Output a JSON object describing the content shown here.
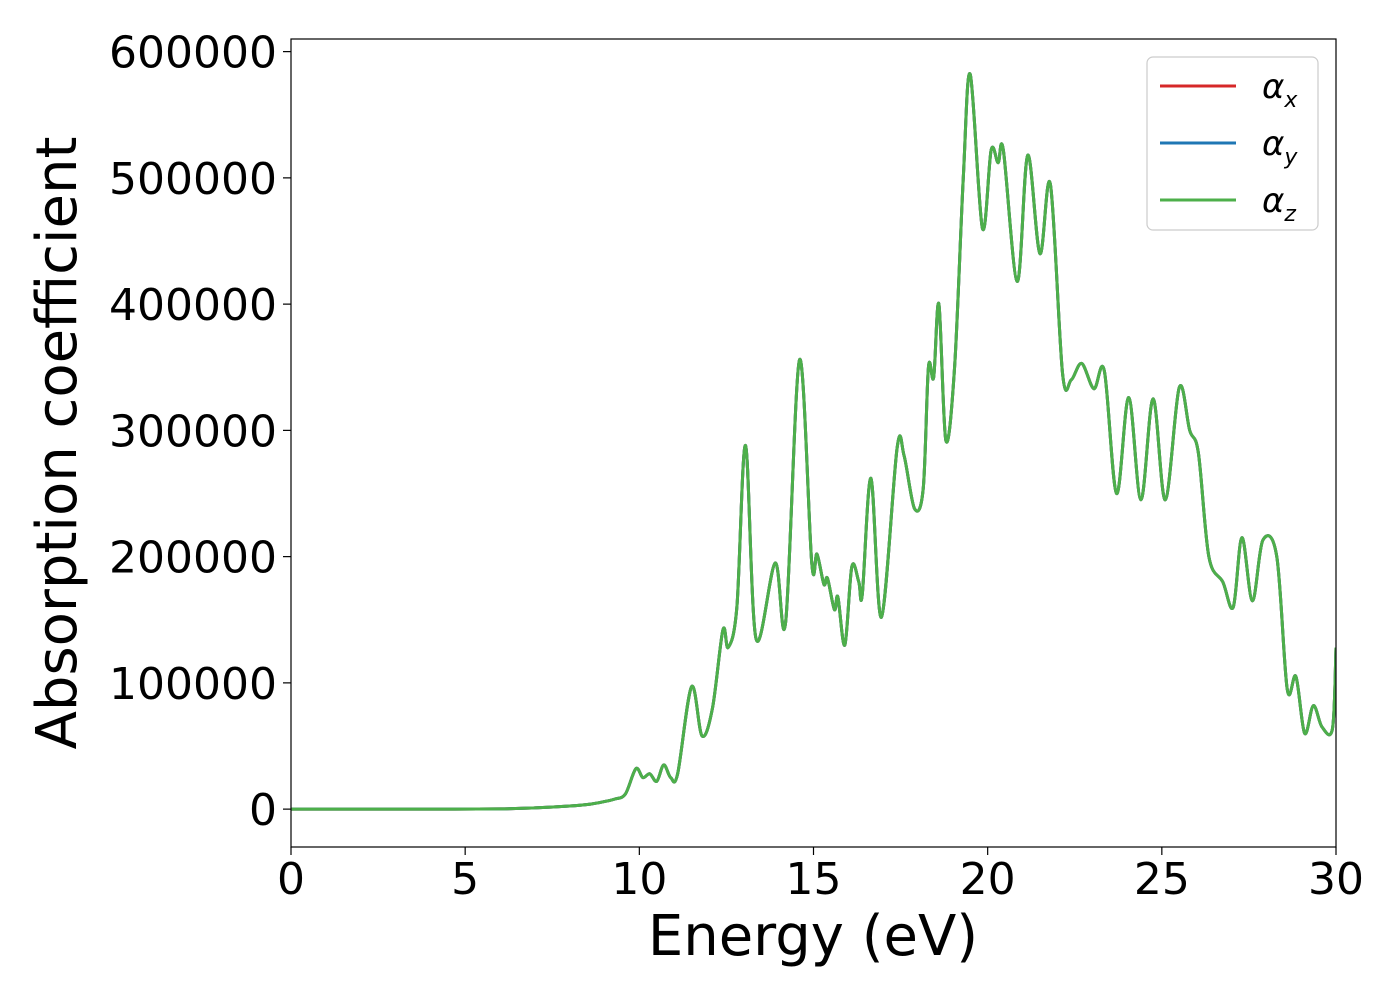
{
  "chart_data": {
    "type": "line",
    "title": "",
    "xlabel": "Energy (eV)",
    "ylabel": "Absorption coefficient",
    "xlim": [
      0,
      30
    ],
    "ylim": [
      -30000,
      610000
    ],
    "xticks": [
      0,
      5,
      10,
      15,
      20,
      25,
      30
    ],
    "yticks": [
      0,
      100000,
      200000,
      300000,
      400000,
      500000,
      600000
    ],
    "grid": false,
    "legend_position": "top-right",
    "x": [
      0,
      2,
      4,
      6,
      7,
      8,
      8.6,
      9,
      9.3,
      9.6,
      9.9,
      10.1,
      10.3,
      10.5,
      10.7,
      10.9,
      11.1,
      11.5,
      11.8,
      12.1,
      12.4,
      12.55,
      12.8,
      13.05,
      13.35,
      13.9,
      14.2,
      14.6,
      14.95,
      15.1,
      15.3,
      15.4,
      15.6,
      15.7,
      15.9,
      16.1,
      16.3,
      16.4,
      16.65,
      16.95,
      17.4,
      17.6,
      17.9,
      18.15,
      18.3,
      18.45,
      18.6,
      18.8,
      19.05,
      19.3,
      19.5,
      19.85,
      20.1,
      20.3,
      20.45,
      20.85,
      21.15,
      21.5,
      21.8,
      22.15,
      22.4,
      22.7,
      23.05,
      23.35,
      23.7,
      24.05,
      24.4,
      24.75,
      25.1,
      25.5,
      25.8,
      26.05,
      26.35,
      26.75,
      27.05,
      27.3,
      27.6,
      27.9,
      28.3,
      28.6,
      28.85,
      29.1,
      29.35,
      29.6,
      29.9,
      30
    ],
    "series": [
      {
        "name": "αx",
        "color": "#d62728",
        "values": [
          0,
          0,
          0,
          200,
          1000,
          2500,
          4000,
          6000,
          8000,
          12000,
          32000,
          25000,
          28000,
          22000,
          35000,
          25000,
          28000,
          97000,
          58000,
          80000,
          142000,
          128000,
          160000,
          288000,
          135000,
          195000,
          148000,
          356000,
          195000,
          202000,
          178000,
          183000,
          158000,
          168000,
          130000,
          192000,
          180000,
          170000,
          262000,
          152000,
          286000,
          280000,
          238000,
          254000,
          350000,
          342000,
          400000,
          292000,
          350000,
          500000,
          582000,
          460000,
          522000,
          512000,
          522000,
          418000,
          518000,
          440000,
          495000,
          345000,
          340000,
          353000,
          333000,
          347000,
          250000,
          326000,
          245000,
          325000,
          245000,
          334000,
          300000,
          282000,
          200000,
          180000,
          160000,
          215000,
          165000,
          213000,
          200000,
          95000,
          105000,
          60000,
          82000,
          65000,
          64000,
          128000
        ]
      },
      {
        "name": "αy",
        "color": "#1f77b4",
        "values": [
          0,
          0,
          0,
          200,
          1000,
          2500,
          4000,
          6000,
          8000,
          12000,
          32000,
          25000,
          28000,
          22000,
          35000,
          25000,
          28000,
          97000,
          58000,
          80000,
          142000,
          128000,
          160000,
          288000,
          135000,
          195000,
          148000,
          356000,
          195000,
          202000,
          178000,
          183000,
          158000,
          168000,
          130000,
          192000,
          180000,
          170000,
          262000,
          152000,
          286000,
          280000,
          238000,
          254000,
          350000,
          342000,
          400000,
          292000,
          350000,
          500000,
          582000,
          460000,
          522000,
          512000,
          522000,
          418000,
          518000,
          440000,
          495000,
          345000,
          340000,
          353000,
          333000,
          347000,
          250000,
          326000,
          245000,
          325000,
          245000,
          334000,
          300000,
          282000,
          200000,
          180000,
          160000,
          215000,
          165000,
          213000,
          200000,
          95000,
          105000,
          60000,
          82000,
          65000,
          64000,
          128000
        ]
      },
      {
        "name": "αz",
        "color": "#4daf4a",
        "values": [
          0,
          0,
          0,
          200,
          1000,
          2500,
          4000,
          6000,
          8000,
          12000,
          32000,
          25000,
          28000,
          22000,
          35000,
          25000,
          28000,
          97000,
          58000,
          80000,
          142000,
          128000,
          160000,
          288000,
          135000,
          195000,
          148000,
          356000,
          195000,
          202000,
          178000,
          183000,
          158000,
          168000,
          130000,
          192000,
          180000,
          170000,
          262000,
          152000,
          286000,
          280000,
          238000,
          254000,
          350000,
          342000,
          400000,
          292000,
          350000,
          500000,
          582000,
          460000,
          522000,
          512000,
          522000,
          418000,
          518000,
          440000,
          495000,
          345000,
          340000,
          353000,
          333000,
          347000,
          250000,
          326000,
          245000,
          325000,
          245000,
          334000,
          300000,
          282000,
          200000,
          180000,
          160000,
          215000,
          165000,
          213000,
          200000,
          95000,
          105000,
          60000,
          82000,
          65000,
          64000,
          128000
        ]
      }
    ]
  },
  "legend": {
    "entries": [
      {
        "base": "α",
        "sub": "x",
        "color": "#d62728"
      },
      {
        "base": "α",
        "sub": "y",
        "color": "#1f77b4"
      },
      {
        "base": "α",
        "sub": "z",
        "color": "#4daf4a"
      }
    ]
  }
}
